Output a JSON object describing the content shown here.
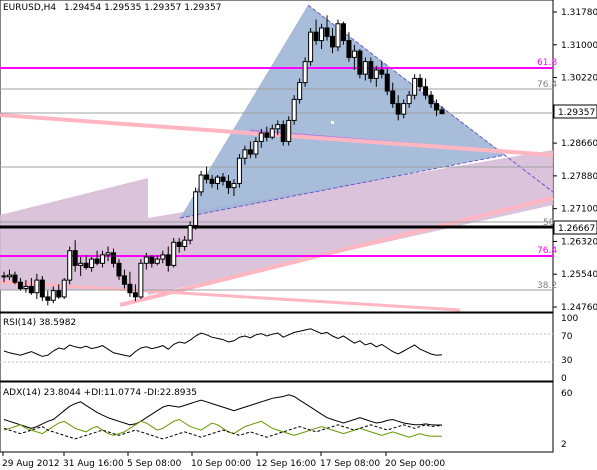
{
  "header": {
    "symbol_timeframe": "EURUSD,H4",
    "ohlc": "1.29454 1.29535 1.29357 1.29357"
  },
  "colors": {
    "candle": "#000000",
    "magenta_level": "#ff00ff",
    "pink_channel": "#ffb6c1",
    "triangle_fill": "#9fb6d6",
    "lilac_band": "#d8bcd8",
    "support_line": "#000000",
    "rsi_line": "#000000",
    "adx_main": "#000000",
    "di_plus": "#669900",
    "di_minus": "#000000"
  },
  "price_axis": {
    "ticks": [
      "1.31780",
      "1.31000",
      "1.30220",
      "1.28660",
      "1.27880",
      "1.27100",
      "1.26320",
      "1.25540",
      "1.24760"
    ],
    "current_price": "1.29357",
    "level_label": "1.26667"
  },
  "level_labels": {
    "fib_618_top": "61.8",
    "fib_764_top": "76.4",
    "fib_50": "50",
    "fib_764_bottom": "76.4",
    "fib_382": "38.2"
  },
  "rsi": {
    "label": "RSI(14) 38.5982",
    "ticks": [
      "100",
      "70",
      "30",
      "0"
    ]
  },
  "adx": {
    "label": "ADX(14) 23.8044 +DI:11.0774 -DI:22.8935",
    "ticks": [
      "60",
      "2"
    ]
  },
  "time_axis": {
    "labels": [
      "29 Aug 2012",
      "31 Aug 16:00",
      "5 Sep 08:00",
      "10 Sep 00:00",
      "12 Sep 16:00",
      "17 Sep 08:00",
      "20 Sep 00:00"
    ]
  },
  "chart_data": {
    "type": "candlestick",
    "price_range": [
      1.247,
      1.319
    ],
    "candles": [
      [
        1.255,
        1.256,
        1.2535,
        1.2548
      ],
      [
        1.2548,
        1.2565,
        1.254,
        1.2552
      ],
      [
        1.2552,
        1.256,
        1.253,
        1.2535
      ],
      [
        1.2535,
        1.2545,
        1.2515,
        1.252
      ],
      [
        1.252,
        1.254,
        1.251,
        1.2525
      ],
      [
        1.2525,
        1.2545,
        1.2505,
        1.251
      ],
      [
        1.251,
        1.2555,
        1.2495,
        1.254
      ],
      [
        1.254,
        1.255,
        1.249,
        1.25
      ],
      [
        1.25,
        1.2515,
        1.248,
        1.2492
      ],
      [
        1.2492,
        1.2525,
        1.2485,
        1.2515
      ],
      [
        1.2515,
        1.253,
        1.2495,
        1.25
      ],
      [
        1.25,
        1.2545,
        1.2495,
        1.254
      ],
      [
        1.254,
        1.262,
        1.253,
        1.261
      ],
      [
        1.261,
        1.2635,
        1.256,
        1.2575
      ],
      [
        1.2575,
        1.2595,
        1.255,
        1.258
      ],
      [
        1.258,
        1.26,
        1.2565,
        1.257
      ],
      [
        1.257,
        1.2595,
        1.256,
        1.259
      ],
      [
        1.259,
        1.261,
        1.2575,
        1.258
      ],
      [
        1.258,
        1.261,
        1.257,
        1.26
      ],
      [
        1.26,
        1.262,
        1.2585,
        1.2605
      ],
      [
        1.2605,
        1.2615,
        1.257,
        1.258
      ],
      [
        1.258,
        1.259,
        1.254,
        1.255
      ],
      [
        1.255,
        1.2565,
        1.252,
        1.253
      ],
      [
        1.253,
        1.256,
        1.25,
        1.251
      ],
      [
        1.251,
        1.253,
        1.249,
        1.25
      ],
      [
        1.25,
        1.259,
        1.2495,
        1.258
      ],
      [
        1.258,
        1.2605,
        1.2565,
        1.2595
      ],
      [
        1.2595,
        1.26,
        1.257,
        1.258
      ],
      [
        1.258,
        1.26,
        1.2575,
        1.259
      ],
      [
        1.259,
        1.261,
        1.258,
        1.26
      ],
      [
        1.26,
        1.262,
        1.256,
        1.2575
      ],
      [
        1.2575,
        1.264,
        1.257,
        1.263
      ],
      [
        1.263,
        1.264,
        1.2605,
        1.262
      ],
      [
        1.262,
        1.2645,
        1.261,
        1.2635
      ],
      [
        1.2635,
        1.268,
        1.2625,
        1.267
      ],
      [
        1.267,
        1.276,
        1.266,
        1.275
      ],
      [
        1.275,
        1.28,
        1.274,
        1.279
      ],
      [
        1.279,
        1.281,
        1.277,
        1.278
      ],
      [
        1.278,
        1.279,
        1.276,
        1.277
      ],
      [
        1.277,
        1.279,
        1.2755,
        1.2785
      ],
      [
        1.2785,
        1.2795,
        1.2765,
        1.2775
      ],
      [
        1.2775,
        1.279,
        1.2745,
        1.276
      ],
      [
        1.276,
        1.278,
        1.274,
        1.277
      ],
      [
        1.277,
        1.284,
        1.276,
        1.283
      ],
      [
        1.283,
        1.286,
        1.2815,
        1.285
      ],
      [
        1.285,
        1.287,
        1.283,
        1.284
      ],
      [
        1.284,
        1.288,
        1.283,
        1.287
      ],
      [
        1.287,
        1.29,
        1.2855,
        1.289
      ],
      [
        1.289,
        1.2905,
        1.287,
        1.288
      ],
      [
        1.288,
        1.291,
        1.2875,
        1.29
      ],
      [
        1.29,
        1.292,
        1.2885,
        1.291
      ],
      [
        1.291,
        1.292,
        1.286,
        1.287
      ],
      [
        1.287,
        1.293,
        1.286,
        1.292
      ],
      [
        1.292,
        1.298,
        1.291,
        1.297
      ],
      [
        1.297,
        1.302,
        1.296,
        1.301
      ],
      [
        1.301,
        1.307,
        1.3,
        1.306
      ],
      [
        1.306,
        1.314,
        1.305,
        1.313
      ],
      [
        1.313,
        1.316,
        1.31,
        1.311
      ],
      [
        1.311,
        1.315,
        1.309,
        1.314
      ],
      [
        1.314,
        1.317,
        1.311,
        1.312
      ],
      [
        1.312,
        1.314,
        1.308,
        1.3095
      ],
      [
        1.3095,
        1.316,
        1.3085,
        1.315
      ],
      [
        1.315,
        1.3155,
        1.31,
        1.311
      ],
      [
        1.311,
        1.313,
        1.306,
        1.307
      ],
      [
        1.307,
        1.31,
        1.304,
        1.3085
      ],
      [
        1.3085,
        1.309,
        1.302,
        1.303
      ],
      [
        1.303,
        1.307,
        1.3015,
        1.306
      ],
      [
        1.306,
        1.307,
        1.301,
        1.302
      ],
      [
        1.302,
        1.305,
        1.3,
        1.304
      ],
      [
        1.304,
        1.306,
        1.302,
        1.303
      ],
      [
        1.303,
        1.3045,
        1.298,
        1.299
      ],
      [
        1.299,
        1.301,
        1.295,
        1.296
      ],
      [
        1.296,
        1.298,
        1.292,
        1.2935
      ],
      [
        1.2935,
        1.297,
        1.2925,
        1.296
      ],
      [
        1.296,
        1.299,
        1.295,
        1.298
      ],
      [
        1.298,
        1.303,
        1.297,
        1.302
      ],
      [
        1.302,
        1.303,
        1.299,
        1.3
      ],
      [
        1.3,
        1.302,
        1.297,
        1.298
      ],
      [
        1.298,
        1.299,
        1.295,
        1.296
      ],
      [
        1.296,
        1.297,
        1.293,
        1.2945
      ],
      [
        1.2945,
        1.2954,
        1.2936,
        1.2936
      ]
    ],
    "rsi_values": [
      45,
      42,
      40,
      38,
      41,
      44,
      40,
      36,
      38,
      45,
      50,
      48,
      55,
      52,
      50,
      53,
      49,
      51,
      54,
      48,
      42,
      40,
      38,
      36,
      44,
      50,
      52,
      49,
      51,
      54,
      48,
      56,
      60,
      58,
      63,
      70,
      75,
      72,
      68,
      66,
      64,
      60,
      62,
      68,
      70,
      67,
      72,
      74,
      70,
      73,
      75,
      68,
      72,
      76,
      78,
      80,
      82,
      78,
      74,
      76,
      70,
      66,
      70,
      64,
      58,
      62,
      55,
      58,
      52,
      56,
      50,
      44,
      40,
      45,
      50,
      55,
      48,
      44,
      40,
      38,
      38.6
    ],
    "rsi_range": [
      0,
      100
    ],
    "adx_values": [
      30,
      28,
      26,
      24,
      22,
      20,
      22,
      25,
      28,
      30,
      35,
      40,
      45,
      48,
      50,
      46,
      42,
      38,
      35,
      32,
      30,
      28,
      26,
      24,
      25,
      28,
      32,
      36,
      40,
      44,
      46,
      45,
      44,
      46,
      48,
      50,
      52,
      50,
      48,
      46,
      44,
      42,
      40,
      42,
      44,
      46,
      48,
      50,
      52,
      54,
      55,
      56,
      58,
      56,
      52,
      48,
      44,
      40,
      36,
      32,
      30,
      28,
      26,
      28,
      30,
      32,
      30,
      28,
      26,
      27,
      29,
      30,
      28,
      26,
      25,
      24,
      24,
      25,
      24,
      23.8,
      23.8
    ],
    "di_plus_values": [
      18,
      20,
      22,
      24,
      20,
      18,
      16,
      14,
      18,
      22,
      26,
      28,
      24,
      20,
      18,
      16,
      20,
      22,
      18,
      14,
      12,
      14,
      16,
      20,
      24,
      28,
      26,
      22,
      18,
      20,
      24,
      28,
      30,
      26,
      22,
      20,
      18,
      22,
      26,
      24,
      20,
      16,
      14,
      18,
      22,
      24,
      26,
      28,
      24,
      20,
      18,
      16,
      14,
      12,
      14,
      16,
      18,
      20,
      22,
      20,
      18,
      16,
      14,
      16,
      18,
      20,
      18,
      16,
      14,
      12,
      14,
      16,
      14,
      12,
      10,
      12,
      14,
      12,
      11,
      11.1,
      11.1
    ],
    "di_minus_values": [
      20,
      18,
      16,
      14,
      16,
      18,
      20,
      22,
      18,
      16,
      14,
      12,
      10,
      8,
      10,
      12,
      14,
      16,
      18,
      16,
      14,
      12,
      14,
      16,
      18,
      16,
      14,
      12,
      10,
      8,
      10,
      12,
      14,
      16,
      14,
      12,
      10,
      12,
      14,
      16,
      18,
      16,
      14,
      12,
      14,
      16,
      14,
      12,
      10,
      12,
      14,
      16,
      18,
      20,
      22,
      20,
      18,
      16,
      18,
      20,
      22,
      24,
      22,
      20,
      18,
      20,
      22,
      24,
      22,
      20,
      18,
      20,
      22,
      24,
      22,
      20,
      22,
      24,
      22,
      22.9,
      22.9
    ],
    "adx_range": [
      0,
      60
    ]
  }
}
